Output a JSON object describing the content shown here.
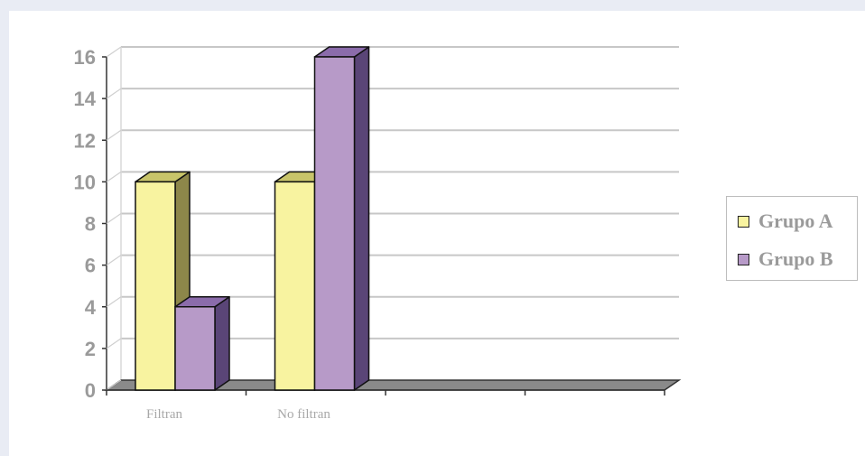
{
  "chart_data": {
    "type": "bar",
    "title": "",
    "xlabel": "",
    "ylabel": "",
    "categories": [
      "Filtran",
      "No filtran",
      "",
      ""
    ],
    "series": [
      {
        "name": "Grupo A",
        "values": [
          10,
          10,
          null,
          null
        ]
      },
      {
        "name": "Grupo B",
        "values": [
          4,
          16,
          null,
          null
        ]
      }
    ],
    "ylim": [
      0,
      16
    ],
    "yticks": [
      0,
      2,
      4,
      6,
      8,
      10,
      12,
      14,
      16
    ],
    "ytick_labels": [
      "0",
      "2",
      "4",
      "6",
      "8",
      "10",
      "12",
      "14",
      "16"
    ],
    "grid": true,
    "legend_position": "right",
    "style": "3d-clustered-column"
  },
  "colors": {
    "series": [
      "#f8f3a0",
      "#b79ac8"
    ],
    "series_side": [
      "#8d874a",
      "#5a4577"
    ],
    "series_top": [
      "#c8c46a",
      "#8b6cab"
    ],
    "floor": "#8a8a8a",
    "gridline": "#c7c7c7",
    "axis": "#333333"
  }
}
